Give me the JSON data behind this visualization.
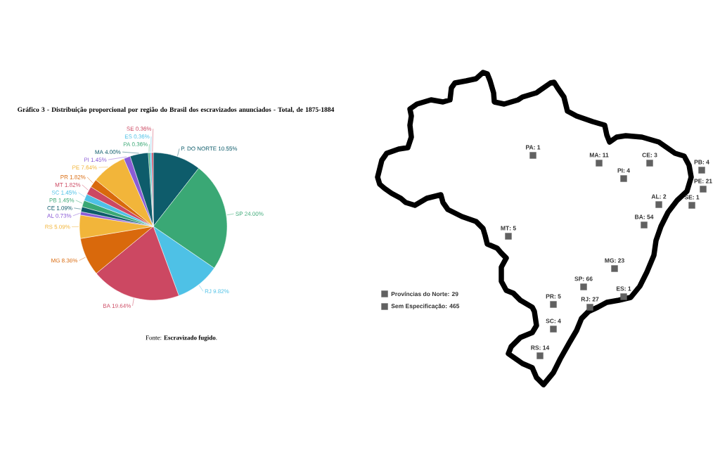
{
  "chart_data": [
    {
      "type": "pie",
      "title": "Gráfico 3 - Distribuição proporcional por região do Brasil dos escravizados anunciados - Total, de 1875-1884",
      "categories": [
        "P. DO NORTE",
        "SP",
        "RJ",
        "BA",
        "MG",
        "RS",
        "AL",
        "CE",
        "PB",
        "SC",
        "MT",
        "PR",
        "PE",
        "PI",
        "MA",
        "PA",
        "ES",
        "SE"
      ],
      "values": [
        10.55,
        24.0,
        9.82,
        19.64,
        8.36,
        5.09,
        0.73,
        1.09,
        1.45,
        1.45,
        1.82,
        1.82,
        7.64,
        1.45,
        4.0,
        0.36,
        0.36,
        0.36
      ],
      "value_labels": [
        "10.55%",
        "24.00%",
        "9.82%",
        "19.64%",
        "8.36%",
        "5.09%",
        "0.73%",
        "1.09%",
        "1.45%",
        "1.45%",
        "1.82%",
        "1.82%",
        "7.64%",
        "1.45%",
        "4.00%",
        "0.36%",
        "0.36%",
        "0.36%"
      ],
      "colors": [
        "#0e5c6b",
        "#3aa875",
        "#4ec1e6",
        "#cc4862",
        "#d9690c",
        "#f2b53a",
        "#8a5cd6",
        "#0e5c6b",
        "#3aa875",
        "#4ec1e6",
        "#cc4862",
        "#d9690c",
        "#f2b53a",
        "#8a5cd6",
        "#0e5c6b",
        "#3aa875",
        "#4ec1e6",
        "#cc4862"
      ],
      "annotations": [
        "Fonte: **Escravizado fugido**."
      ]
    },
    {
      "type": "other",
      "categories": [
        "PA",
        "MA",
        "CE",
        "PB",
        "PI",
        "PE",
        "AL",
        "SE",
        "BA",
        "MT",
        "MG",
        "SP",
        "ES",
        "PR",
        "RJ",
        "SC",
        "RS",
        "Províncias do Norte",
        "Sem Especificação"
      ],
      "values": [
        1,
        11,
        3,
        4,
        4,
        21,
        2,
        1,
        54,
        5,
        23,
        66,
        1,
        5,
        27,
        4,
        14,
        29,
        465
      ],
      "value_labels": [
        ": 1",
        ": 11",
        ": 3",
        ": 4",
        ": 4",
        ": 21",
        ": 2",
        ": 1",
        ": 54",
        ": 5",
        ": 23",
        ": 66",
        ": 1",
        ": 5",
        ": 27",
        ": 4",
        ": 14",
        ": 29",
        ": 465"
      ],
      "color": "#616161"
    }
  ]
}
